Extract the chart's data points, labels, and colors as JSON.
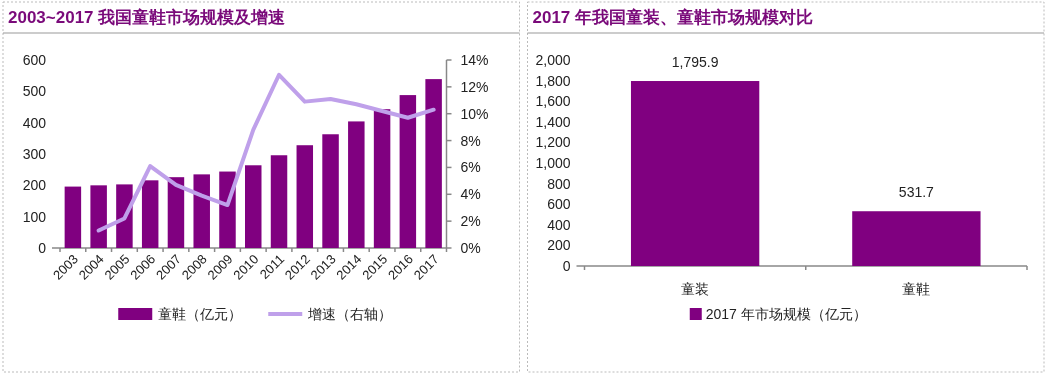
{
  "chart_data": [
    {
      "type": "bar",
      "title": "2003~2017 我国童鞋市场规模及增速",
      "categories": [
        "2003",
        "2004",
        "2005",
        "2006",
        "2007",
        "2008",
        "2009",
        "2010",
        "2011",
        "2012",
        "2013",
        "2014",
        "2015",
        "2016",
        "2017"
      ],
      "series": [
        {
          "name": "童鞋（亿元）",
          "color": "#800080",
          "values": [
            196,
            200,
            203,
            216,
            226,
            235,
            244,
            264,
            296,
            328,
            363,
            404,
            443,
            488,
            539
          ]
        },
        {
          "name": "增速（右轴）",
          "type": "line",
          "axis": "y2",
          "color": "#bfa0ea",
          "values": [
            null,
            1.3,
            2.2,
            6.1,
            4.7,
            3.9,
            3.2,
            8.8,
            12.9,
            10.9,
            11.1,
            10.7,
            10.2,
            9.7,
            10.3
          ]
        }
      ],
      "ylim": [
        0,
        600
      ],
      "yticks": [
        0,
        100,
        200,
        300,
        400,
        500,
        600
      ],
      "y2lim": [
        0,
        14
      ],
      "y2ticks": [
        {
          "value": 0,
          "label": "0%"
        },
        {
          "value": 2,
          "label": "2%"
        },
        {
          "value": 4,
          "label": "4%"
        },
        {
          "value": 6,
          "label": "6%"
        },
        {
          "value": 8,
          "label": "8%"
        },
        {
          "value": 10,
          "label": "10%"
        },
        {
          "value": 12,
          "label": "12%"
        },
        {
          "value": 14,
          "label": "14%"
        }
      ],
      "legend": "bottom"
    },
    {
      "type": "bar",
      "title": "2017 年我国童装、童鞋市场规模对比",
      "categories": [
        "童装",
        "童鞋"
      ],
      "series": [
        {
          "name": "2017 年市场规模（亿元）",
          "color": "#800080",
          "values": [
            1795.9,
            531.7
          ],
          "value_labels": [
            "1,795.9",
            "531.7"
          ]
        }
      ],
      "ylim": [
        0,
        2000
      ],
      "yticks": [
        0,
        200,
        400,
        600,
        {
          "value": 800,
          "label": "800"
        },
        {
          "value": 1000,
          "label": "1,000"
        },
        {
          "value": 1200,
          "label": "1,200"
        },
        {
          "value": 1400,
          "label": "1,400"
        },
        {
          "value": 1600,
          "label": "1,600"
        },
        {
          "value": 1800,
          "label": "1,800"
        },
        {
          "value": 2000,
          "label": "2,000"
        }
      ],
      "legend": "bottom"
    }
  ]
}
